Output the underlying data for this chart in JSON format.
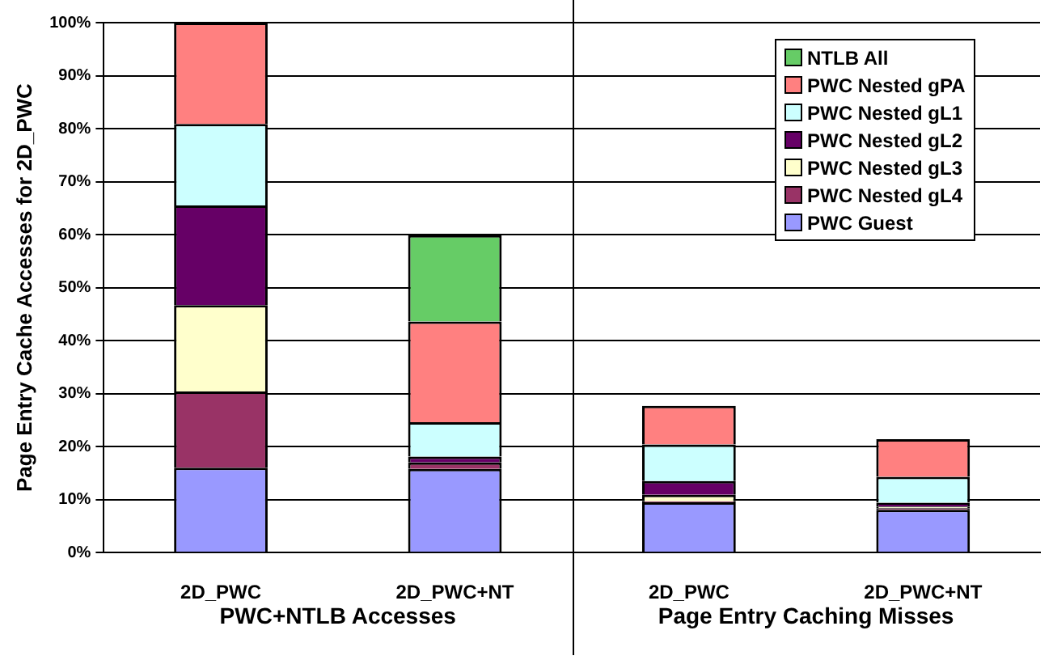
{
  "chart_data": {
    "type": "bar",
    "stacked": true,
    "ylabel": "Page Entry Cache Accesses for 2D_PWC",
    "categories": [
      "2D_PWC",
      "2D_PWC+NT",
      "2D_PWC",
      "2D_PWC+NT"
    ],
    "series": [
      {
        "name": "PWC Guest",
        "color": "#9999ff",
        "values": [
          16,
          15.8,
          9.5,
          8.1
        ]
      },
      {
        "name": "PWC Nested gL4",
        "color": "#993366",
        "values": [
          14.4,
          1.2,
          0.2,
          0.3
        ]
      },
      {
        "name": "PWC Nested gL3",
        "color": "#ffffcc",
        "values": [
          16.3,
          null,
          1.2,
          0.3
        ]
      },
      {
        "name": "PWC Nested gL2",
        "color": "#660066",
        "values": [
          18.8,
          1.1,
          2.6,
          0.7
        ]
      },
      {
        "name": "PWC Nested gL1",
        "color": "#ccffff",
        "values": [
          15.4,
          6.5,
          6.9,
          4.9
        ]
      },
      {
        "name": "PWC Nested gPA",
        "color": "#ff8080",
        "values": [
          19.1,
          19,
          7.3,
          7.1
        ]
      },
      {
        "name": "NTLB All",
        "color": "#66cc66",
        "values": [
          0,
          16.3,
          0,
          0
        ]
      }
    ],
    "ylim": [
      0,
      100
    ],
    "yticks": [
      {
        "value": 0,
        "label": "0%"
      },
      {
        "value": 10,
        "label": "10%"
      },
      {
        "value": 20,
        "label": "20%"
      },
      {
        "value": 30,
        "label": "30%"
      },
      {
        "value": 40,
        "label": "40%"
      },
      {
        "value": 50,
        "label": "50%"
      },
      {
        "value": 60,
        "label": "60%"
      },
      {
        "value": 70,
        "label": "70%"
      },
      {
        "value": 80,
        "label": "80%"
      },
      {
        "value": 90,
        "label": "90%"
      },
      {
        "value": 100,
        "label": "100%"
      }
    ],
    "grid": "y",
    "legend": "top right",
    "annotations": [
      "PWC+NTLB Accesses",
      "Page Entry Caching Misses"
    ]
  }
}
